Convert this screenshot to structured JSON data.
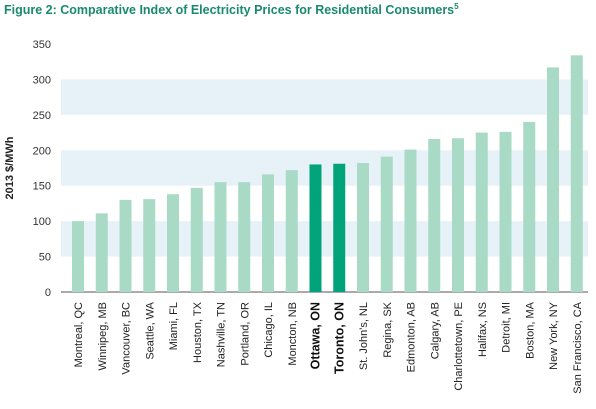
{
  "chart_data": {
    "type": "bar",
    "title": "Figure 2: Comparative Index of Electricity Prices for Residential Consumers",
    "title_footnote": "5",
    "ylabel": "2013 $/MWh",
    "xlabel": "",
    "ylim": [
      0,
      350
    ],
    "yticks": [
      0,
      50,
      100,
      150,
      200,
      250,
      300,
      350
    ],
    "grid": "alternating horizontal bands",
    "categories": [
      "Montreal, QC",
      "Winnipeg, MB",
      "Vancouver, BC",
      "Seattle, WA",
      "Miami, FL",
      "Houston, TX",
      "Nashville, TN",
      "Portland, OR",
      "Chicago, IL",
      "Moncton, NB",
      "Ottawa, ON",
      "Toronto, ON",
      "St. John's, NL",
      "Regina, SK",
      "Edmonton, AB",
      "Calgary, AB",
      "Charlottetown, PE",
      "Halifax, NS",
      "Detroit, MI",
      "Boston, MA",
      "New York, NY",
      "San Francisco, CA"
    ],
    "values": [
      100,
      111,
      130,
      131,
      138,
      147,
      155,
      155,
      166,
      172,
      180,
      181,
      182,
      191,
      201,
      216,
      217,
      225,
      226,
      240,
      317,
      334
    ],
    "highlighted": [
      "Ottawa, ON",
      "Toronto, ON"
    ],
    "colors": {
      "bar": "#a8dac6",
      "highlight": "#00a37a",
      "band": "#e6f1f8",
      "title": "#1a8a6e"
    }
  }
}
